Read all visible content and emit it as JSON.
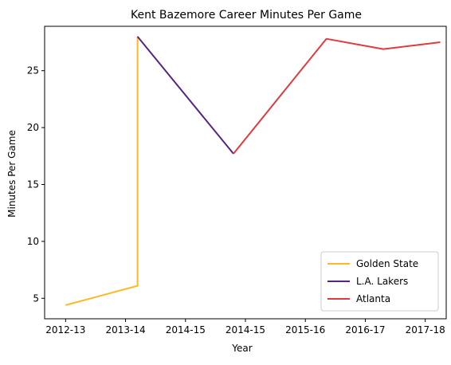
{
  "chart_data": {
    "type": "line",
    "title": "Kent Bazemore Career Minutes Per Game",
    "xlabel": "Year",
    "ylabel": "Minutes Per Game",
    "x_tick_labels": [
      "2012-13",
      "2013-14",
      "2014-15",
      "2014-15",
      "2015-16",
      "2016-17",
      "2017-18"
    ],
    "y_ticks": [
      5,
      10,
      15,
      20,
      25
    ],
    "xlim": [
      -0.35,
      6.35
    ],
    "ylim": [
      3.2,
      28.9
    ],
    "grid": false,
    "legend_position": "lower-right",
    "series": [
      {
        "name": "Golden State",
        "color": "#FDB927",
        "points": [
          [
            0,
            4.4
          ],
          [
            1.2,
            6.1
          ],
          [
            1.2,
            28.0
          ]
        ]
      },
      {
        "name": "L.A. Lakers",
        "color": "#552583",
        "points": [
          [
            1.2,
            28.0
          ],
          [
            2.8,
            17.7
          ]
        ]
      },
      {
        "name": "Atlanta",
        "color": "#E03A3E",
        "points": [
          [
            2.8,
            17.7
          ],
          [
            4.35,
            27.8
          ],
          [
            5.3,
            26.9
          ],
          [
            6.25,
            27.5
          ]
        ]
      }
    ]
  }
}
